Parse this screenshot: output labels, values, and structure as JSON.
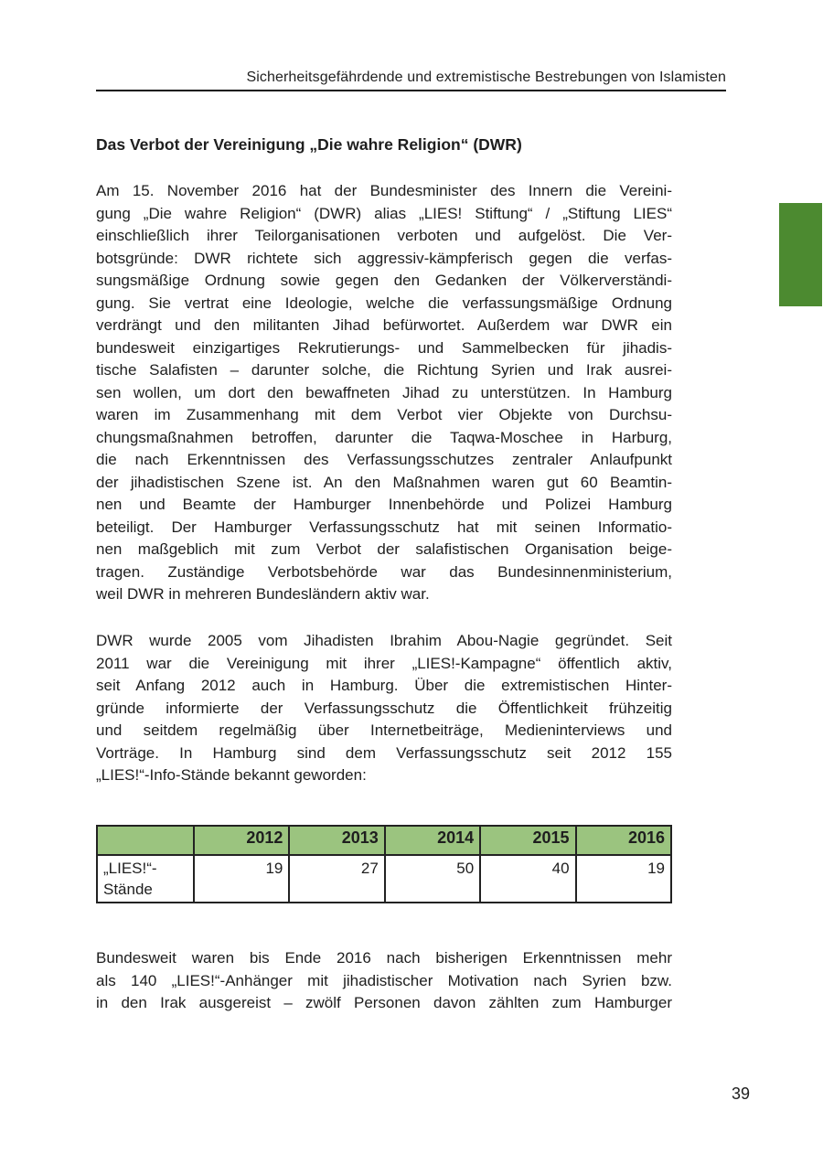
{
  "running_header": "Sicherheitsgefährdende und extremistische Bestrebungen von Islamisten",
  "colors": {
    "side_tab": "#4c8a30",
    "table_header": "#9bc47f"
  },
  "title": "Das Verbot der Vereinigung „Die wahre Religion“ (DWR)",
  "paragraphs": [
    [
      "Am 15. November 2016 hat der Bundesminister des Innern die Vereini-",
      "gung „Die wahre Religion“ (DWR) alias „LIES! Stiftung“ / „Stiftung LIES“",
      "einschließlich ihrer Teilorganisationen verboten und aufgelöst. Die Ver-",
      "botsgründe: DWR richtete sich aggressiv-kämpferisch gegen die verfas-",
      "sungsmäßige Ordnung sowie gegen den Gedanken der Völkerverständi-",
      "gung. Sie vertrat eine Ideologie, welche die verfassungsmäßige Ordnung",
      "verdrängt und den militanten Jihad befürwortet. Außerdem war DWR ein",
      "bundesweit einzigartiges Rekrutierungs- und Sammelbecken für jihadis-",
      "tische Salafisten – darunter solche, die Richtung Syrien und Irak ausrei-",
      "sen wollen, um dort den bewaffneten Jihad zu unterstützen. In Hamburg",
      "waren im Zusammenhang mit dem Verbot vier Objekte von Durchsu-",
      "chungsmaßnahmen betroffen, darunter die Taqwa-Moschee in Harburg,",
      "die nach Erkenntnissen des Verfassungsschutzes zentraler Anlaufpunkt",
      "der jihadistischen Szene ist. An den Maßnahmen waren gut 60 Beamtin-",
      "nen und Beamte der Hamburger Innenbehörde und Polizei Hamburg",
      "beteiligt. Der Hamburger Verfassungsschutz hat mit seinen Informatio-",
      "nen maßgeblich mit zum Verbot der salafistischen Organisation beige-",
      "tragen. Zuständige Verbotsbehörde war das Bundesinnenministerium,",
      "weil DWR in mehreren Bundesländern aktiv war."
    ],
    [
      "DWR wurde 2005 vom Jihadisten Ibrahim Abou-Nagie gegründet. Seit",
      "2011 war die Vereinigung mit ihrer „LIES!-Kampagne“ öffentlich aktiv,",
      "seit Anfang 2012 auch in Hamburg. Über die extremistischen Hinter-",
      "gründe informierte der Verfassungsschutz die Öffentlichkeit frühzeitig",
      "und seitdem regelmäßig über Internetbeiträge, Medieninterviews und",
      "Vorträge. In Hamburg sind dem Verfassungsschutz seit 2012 155",
      "„LIES!“-Info-Stände bekannt geworden:"
    ],
    [
      "Bundesweit waren bis Ende 2016 nach bisherigen Erkenntnissen mehr",
      "als 140 „LIES!“-Anhänger mit jihadistischer Motivation nach Syrien bzw.",
      "in den Irak ausgereist – zwölf Personen davon zählten zum Hamburger"
    ]
  ],
  "table": {
    "header_blank": "",
    "years": [
      "2012",
      "2013",
      "2014",
      "2015",
      "2016"
    ],
    "row_label_lines": [
      "„LIES!“-",
      "Stände"
    ],
    "values": [
      "19",
      "27",
      "50",
      "40",
      "19"
    ]
  },
  "page_number": "39"
}
